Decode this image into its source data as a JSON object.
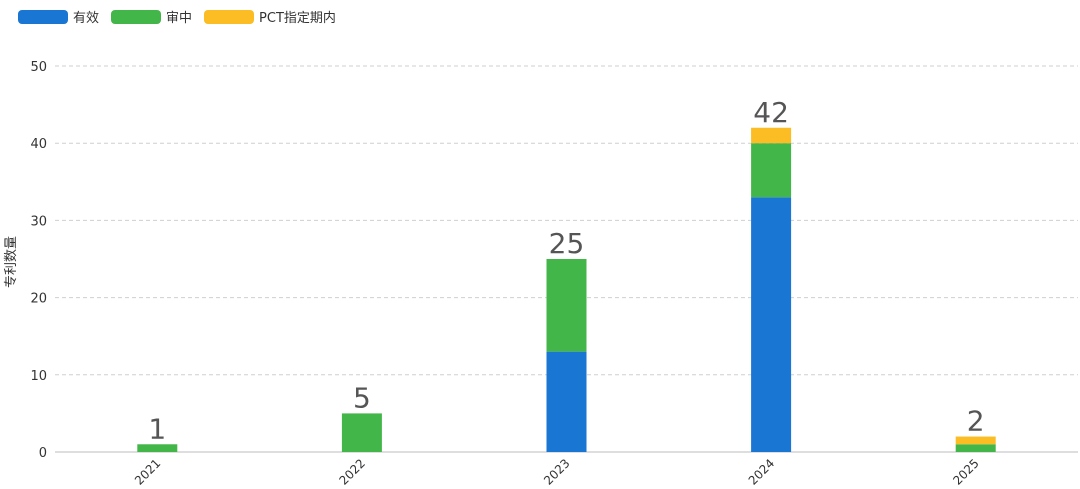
{
  "chart_data": {
    "type": "bar",
    "stacked": true,
    "categories": [
      "2021",
      "2022",
      "2023",
      "2024",
      "2025"
    ],
    "series": [
      {
        "name": "有效",
        "color": "#1976d2",
        "values": [
          0,
          0,
          13,
          33,
          0
        ]
      },
      {
        "name": "审中",
        "color": "#43b649",
        "values": [
          1,
          5,
          12,
          7,
          1
        ]
      },
      {
        "name": "PCT指定期内",
        "color": "#fbbc24",
        "values": [
          0,
          0,
          0,
          2,
          1
        ]
      }
    ],
    "totals": [
      "1",
      "5",
      "25",
      "42",
      "2"
    ],
    "ylabel": "专利数量",
    "xlabel": "",
    "ylim": [
      0,
      50
    ],
    "yticks": [
      "0",
      "10",
      "20",
      "30",
      "40",
      "50"
    ],
    "grid": true,
    "legend_position": "top-left"
  }
}
